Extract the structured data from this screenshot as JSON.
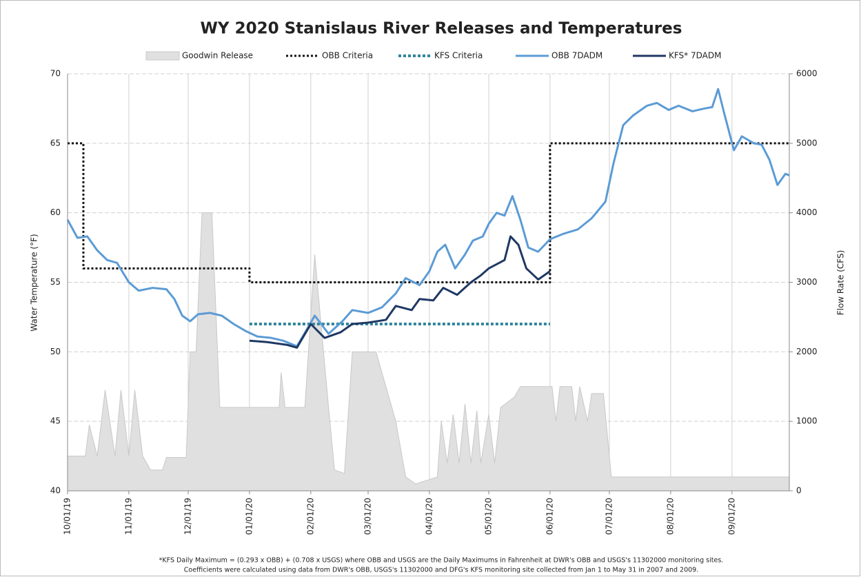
{
  "chart_data": {
    "type": "line",
    "title": "WY 2020 Stanislaus River Releases and Temperatures",
    "y_label": "Water Temperature (°F)",
    "y2_label": "Flow Rate (CFS)",
    "notes": [
      "*KFS Daily Maximum = (0.293 x OBB) + (0.708 x USGS) where OBB and USGS are the Daily Maximums in Fahrenheit at DWR's OBB and USGS's 11302000 monitoring sites.",
      "Coefficients were calculated using data from DWR's OBB, USGS's 11302000 and DFG's KFS monitoring site collected from Jan 1 to May 31 in 2007 and 2009."
    ],
    "xlim": [
      "2019-10-01",
      "2020-09-30"
    ],
    "xticks": [
      {
        "value": "2019-10-01",
        "label": "10/01/19"
      },
      {
        "value": "2019-11-01",
        "label": "11/01/19"
      },
      {
        "value": "2019-12-01",
        "label": "12/01/19"
      },
      {
        "value": "2020-01-01",
        "label": "01/01/20"
      },
      {
        "value": "2020-02-01",
        "label": "02/01/20"
      },
      {
        "value": "2020-03-01",
        "label": "03/01/20"
      },
      {
        "value": "2020-04-01",
        "label": "04/01/20"
      },
      {
        "value": "2020-05-01",
        "label": "05/01/20"
      },
      {
        "value": "2020-06-01",
        "label": "06/01/20"
      },
      {
        "value": "2020-07-01",
        "label": "07/01/20"
      },
      {
        "value": "2020-08-01",
        "label": "08/01/20"
      },
      {
        "value": "2020-09-01",
        "label": "09/01/20"
      }
    ],
    "ylim": [
      40,
      70
    ],
    "yticks": [
      40,
      45,
      50,
      55,
      60,
      65,
      70
    ],
    "y2lim": [
      0,
      6000
    ],
    "y2ticks": [
      0,
      1000,
      2000,
      3000,
      4000,
      5000,
      6000
    ],
    "grid": true,
    "series": [
      {
        "name": "Goodwin Release",
        "kind": "area",
        "axis": "y2",
        "color": "#e0e0e0",
        "x": [
          "2019-10-01",
          "2019-10-10",
          "2019-10-12",
          "2019-10-16",
          "2019-10-20",
          "2019-10-25",
          "2019-10-28",
          "2019-11-01",
          "2019-11-04",
          "2019-11-08",
          "2019-11-12",
          "2019-11-18",
          "2019-11-20",
          "2019-11-30",
          "2019-12-02",
          "2019-12-05",
          "2019-12-08",
          "2019-12-13",
          "2019-12-17",
          "2020-01-16",
          "2020-01-17",
          "2020-01-19",
          "2020-01-29",
          "2020-02-03",
          "2020-02-10",
          "2020-02-13",
          "2020-02-18",
          "2020-02-22",
          "2020-03-05",
          "2020-03-10",
          "2020-03-15",
          "2020-03-20",
          "2020-03-25",
          "2020-04-05",
          "2020-04-07",
          "2020-04-10",
          "2020-04-13",
          "2020-04-16",
          "2020-04-19",
          "2020-04-22",
          "2020-04-25",
          "2020-04-27",
          "2020-05-01",
          "2020-05-04",
          "2020-05-07",
          "2020-05-14",
          "2020-05-17",
          "2020-06-02",
          "2020-06-04",
          "2020-06-06",
          "2020-06-12",
          "2020-06-14",
          "2020-06-16",
          "2020-06-20",
          "2020-06-22",
          "2020-06-28",
          "2020-07-02",
          "2020-09-30"
        ],
        "values": [
          500,
          500,
          950,
          500,
          1450,
          500,
          1450,
          500,
          1450,
          500,
          300,
          300,
          480,
          480,
          2000,
          2000,
          4000,
          4000,
          1200,
          1200,
          1700,
          1200,
          1200,
          3400,
          1200,
          300,
          250,
          2000,
          2000,
          1500,
          1000,
          200,
          100,
          200,
          1000,
          400,
          1100,
          400,
          1250,
          400,
          1150,
          400,
          1100,
          400,
          1200,
          1350,
          1500,
          1500,
          1000,
          1500,
          1500,
          1000,
          1500,
          1000,
          1400,
          1400,
          200,
          200
        ]
      },
      {
        "name": "OBB Criteria",
        "kind": "line",
        "dash": "3,3",
        "width": 3,
        "color": "#111111",
        "x": [
          "2019-10-01",
          "2019-10-09",
          "2019-10-09",
          "2020-01-01",
          "2020-01-01",
          "2020-06-01",
          "2020-06-01",
          "2020-09-30"
        ],
        "values": [
          65,
          65,
          56,
          56,
          55,
          55,
          65,
          65
        ]
      },
      {
        "name": "KFS Criteria",
        "kind": "line",
        "dash": "4,3",
        "width": 4,
        "color": "#31859c",
        "x": [
          "2020-01-01",
          "2020-06-01"
        ],
        "values": [
          52,
          52
        ]
      },
      {
        "name": "OBB 7DADM",
        "kind": "line",
        "width": 3,
        "color": "#5b9bd5",
        "x": [
          "2019-10-01",
          "2019-10-06",
          "2019-10-11",
          "2019-10-16",
          "2019-10-21",
          "2019-10-26",
          "2019-11-01",
          "2019-11-06",
          "2019-11-13",
          "2019-11-20",
          "2019-11-24",
          "2019-11-28",
          "2019-12-02",
          "2019-12-06",
          "2019-12-12",
          "2019-12-18",
          "2019-12-24",
          "2019-12-30",
          "2020-01-05",
          "2020-01-12",
          "2020-01-18",
          "2020-01-25",
          "2020-01-30",
          "2020-02-03",
          "2020-02-10",
          "2020-02-17",
          "2020-02-22",
          "2020-03-01",
          "2020-03-08",
          "2020-03-15",
          "2020-03-20",
          "2020-03-27",
          "2020-04-01",
          "2020-04-05",
          "2020-04-09",
          "2020-04-14",
          "2020-04-19",
          "2020-04-23",
          "2020-04-28",
          "2020-05-01",
          "2020-05-05",
          "2020-05-09",
          "2020-05-13",
          "2020-05-17",
          "2020-05-21",
          "2020-05-26",
          "2020-06-01",
          "2020-06-08",
          "2020-06-15",
          "2020-06-22",
          "2020-06-29",
          "2020-07-03",
          "2020-07-08",
          "2020-07-13",
          "2020-07-20",
          "2020-07-25",
          "2020-07-31",
          "2020-08-05",
          "2020-08-12",
          "2020-08-18",
          "2020-08-22",
          "2020-08-25",
          "2020-08-28",
          "2020-09-02",
          "2020-09-06",
          "2020-09-12",
          "2020-09-16",
          "2020-09-20",
          "2020-09-24",
          "2020-09-28",
          "2020-09-30"
        ],
        "values": [
          59.5,
          58.2,
          58.3,
          57.3,
          56.6,
          56.4,
          55.0,
          54.4,
          54.6,
          54.5,
          53.8,
          52.6,
          52.2,
          52.7,
          52.8,
          52.6,
          52.0,
          51.5,
          51.1,
          51.0,
          50.8,
          50.4,
          51.6,
          52.6,
          51.3,
          52.2,
          53.0,
          52.8,
          53.2,
          54.2,
          55.3,
          54.8,
          55.8,
          57.2,
          57.7,
          56.0,
          57.0,
          58.0,
          58.3,
          59.2,
          60.0,
          59.8,
          61.2,
          59.5,
          57.5,
          57.2,
          58.1,
          58.5,
          58.8,
          59.6,
          60.8,
          63.5,
          66.3,
          67.0,
          67.7,
          67.9,
          67.4,
          67.7,
          67.3,
          67.5,
          67.6,
          68.9,
          67.2,
          64.5,
          65.5,
          65.0,
          64.9,
          63.8,
          62.0,
          62.8,
          62.7
        ]
      },
      {
        "name": "KFS* 7DADM",
        "kind": "line",
        "width": 3,
        "color": "#1f3864",
        "x": [
          "2020-01-01",
          "2020-01-10",
          "2020-01-20",
          "2020-01-25",
          "2020-02-01",
          "2020-02-08",
          "2020-02-16",
          "2020-02-22",
          "2020-03-01",
          "2020-03-10",
          "2020-03-15",
          "2020-03-23",
          "2020-03-27",
          "2020-04-03",
          "2020-04-08",
          "2020-04-15",
          "2020-04-22",
          "2020-04-27",
          "2020-05-01",
          "2020-05-05",
          "2020-05-09",
          "2020-05-12",
          "2020-05-16",
          "2020-05-20",
          "2020-05-26",
          "2020-06-01"
        ],
        "values": [
          50.8,
          50.7,
          50.5,
          50.3,
          52.0,
          51.0,
          51.4,
          52.0,
          52.1,
          52.3,
          53.3,
          53.0,
          53.8,
          53.7,
          54.6,
          54.1,
          55.0,
          55.5,
          56.0,
          56.3,
          56.6,
          58.3,
          57.7,
          56.0,
          55.2,
          55.8
        ]
      }
    ]
  }
}
